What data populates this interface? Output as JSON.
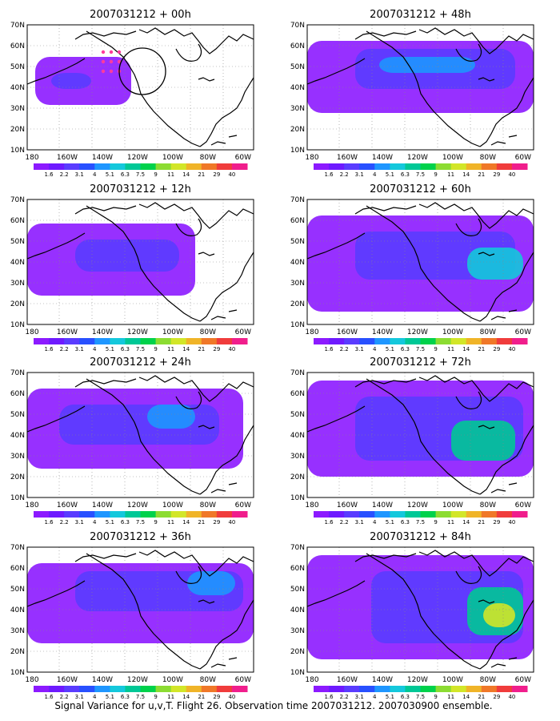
{
  "figure": {
    "caption": "Signal Variance for u,v,T. Flight 26. Observation time 2007031212. 2007030900 ensemble."
  },
  "axes": {
    "lat_labels": [
      "70N",
      "60N",
      "50N",
      "40N",
      "30N",
      "20N",
      "10N"
    ],
    "lon_labels": [
      "180",
      "160W",
      "140W",
      "120W",
      "100W",
      "80W",
      "60W"
    ]
  },
  "colorbar": {
    "levels": [
      "1.6",
      "2.2",
      "3.1",
      "4",
      "5.1",
      "6.3",
      "7.5",
      "9",
      "11",
      "14",
      "21",
      "29",
      "40"
    ],
    "colors": [
      "#8c1aff",
      "#6e1aff",
      "#5a3cff",
      "#2850ff",
      "#1e96ff",
      "#14c8dc",
      "#00c896",
      "#00d24b",
      "#8cdc32",
      "#d2e628",
      "#f0b428",
      "#f07828",
      "#f03c3c",
      "#f01e8c"
    ]
  },
  "panels": [
    {
      "title": "2007031212 + 00h"
    },
    {
      "title": "2007031212 + 48h"
    },
    {
      "title": "2007031212 + 12h"
    },
    {
      "title": "2007031212 + 60h"
    },
    {
      "title": "2007031212 + 24h"
    },
    {
      "title": "2007031212 + 72h"
    },
    {
      "title": "2007031212 + 36h"
    },
    {
      "title": "2007031212 + 84h"
    }
  ]
}
